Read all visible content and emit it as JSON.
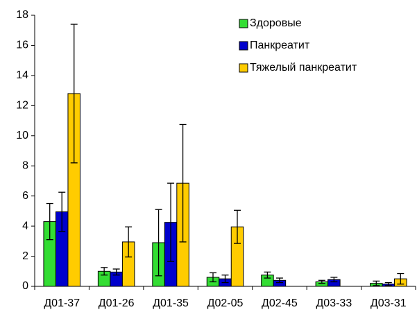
{
  "chart_data": {
    "type": "bar",
    "categories": [
      "Д01-37",
      "Д01-26",
      "Д01-35",
      "Д02-05",
      "Д02-45",
      "Д03-33",
      "Д03-31"
    ],
    "series": [
      {
        "name": "Здоровые",
        "color": "#33dd33",
        "values": [
          4.3,
          1.0,
          2.9,
          0.6,
          0.75,
          0.3,
          0.2
        ],
        "errors": [
          1.2,
          0.25,
          2.2,
          0.3,
          0.2,
          0.1,
          0.15
        ]
      },
      {
        "name": "Панкреатит",
        "color": "#0000cc",
        "values": [
          4.95,
          0.95,
          4.25,
          0.5,
          0.4,
          0.45,
          0.15
        ],
        "errors": [
          1.3,
          0.2,
          2.6,
          0.25,
          0.15,
          0.15,
          0.1
        ]
      },
      {
        "name": "Тяжелый панкреатит",
        "color": "#ffcc00",
        "values": [
          12.8,
          2.95,
          6.85,
          3.95,
          null,
          null,
          0.5
        ],
        "errors": [
          4.6,
          1.0,
          3.9,
          1.1,
          null,
          null,
          0.35
        ]
      }
    ],
    "ylim": [
      0,
      18
    ],
    "yticks": [
      0,
      2,
      4,
      6,
      8,
      10,
      12,
      14,
      16,
      18
    ],
    "grid": false,
    "legend": "top-right"
  }
}
